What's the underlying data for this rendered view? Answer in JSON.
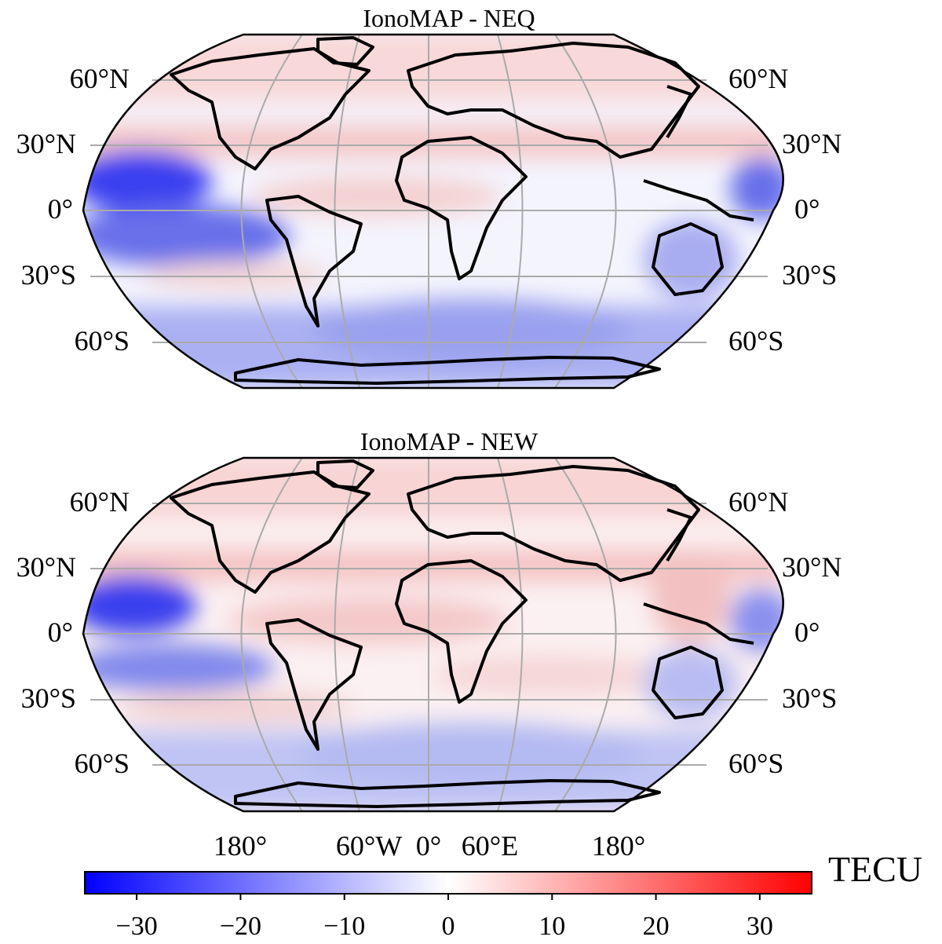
{
  "maps": [
    {
      "title": "IonoMAP - NEQ"
    },
    {
      "title": "IonoMAP - NEW"
    }
  ],
  "lat_labels": {
    "left": [
      "60°N",
      "30°N",
      "0°",
      "30°S",
      "60°S"
    ],
    "right": [
      "60°N",
      "30°N",
      "0°",
      "30°S",
      "60°S"
    ]
  },
  "lon_labels": [
    "180°",
    "60°W",
    "0°",
    "60°E",
    "180°"
  ],
  "colorbar": {
    "unit": "TECU",
    "range": [
      -35,
      35
    ],
    "ticks": [
      "−30",
      "−20",
      "−10",
      "0",
      "10",
      "20",
      "30"
    ],
    "colormap": "bwr",
    "colors": {
      "low": "#0000ff",
      "mid": "#ffffff",
      "high": "#ff0000"
    }
  },
  "projection": "Robinson",
  "gridlines": true
}
